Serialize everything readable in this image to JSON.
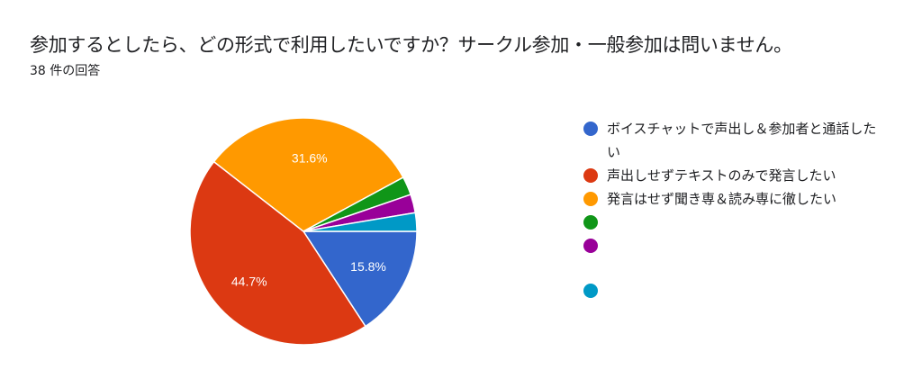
{
  "title": "参加するとしたら、どの形式で利用したいですか？サークル参加・一般参加は問いません。",
  "response_count": "38 件の回答",
  "chart_data": {
    "type": "pie",
    "title": "参加するとしたら、どの形式で利用したいですか？サークル参加・一般参加は問いません。",
    "total": 38,
    "slices": [
      {
        "label": "ボイスチャットで声出し＆参加者と通話したい",
        "value": 6,
        "percent_label": "15.8%",
        "color": "#3366cc"
      },
      {
        "label": "声出しせずテキストのみで発言したい",
        "value": 17,
        "percent_label": "44.7%",
        "color": "#dc3912"
      },
      {
        "label": "発言はせず聞き専＆読み専に徹したい",
        "value": 12,
        "percent_label": "31.6%",
        "color": "#ff9900"
      },
      {
        "label": "",
        "value": 1,
        "percent_label": "",
        "color": "#109618"
      },
      {
        "label": "",
        "value": 1,
        "percent_label": "",
        "color": "#990099"
      },
      {
        "label": "",
        "value": 1,
        "percent_label": "",
        "color": "#0099c6"
      }
    ],
    "legend_position": "right"
  }
}
